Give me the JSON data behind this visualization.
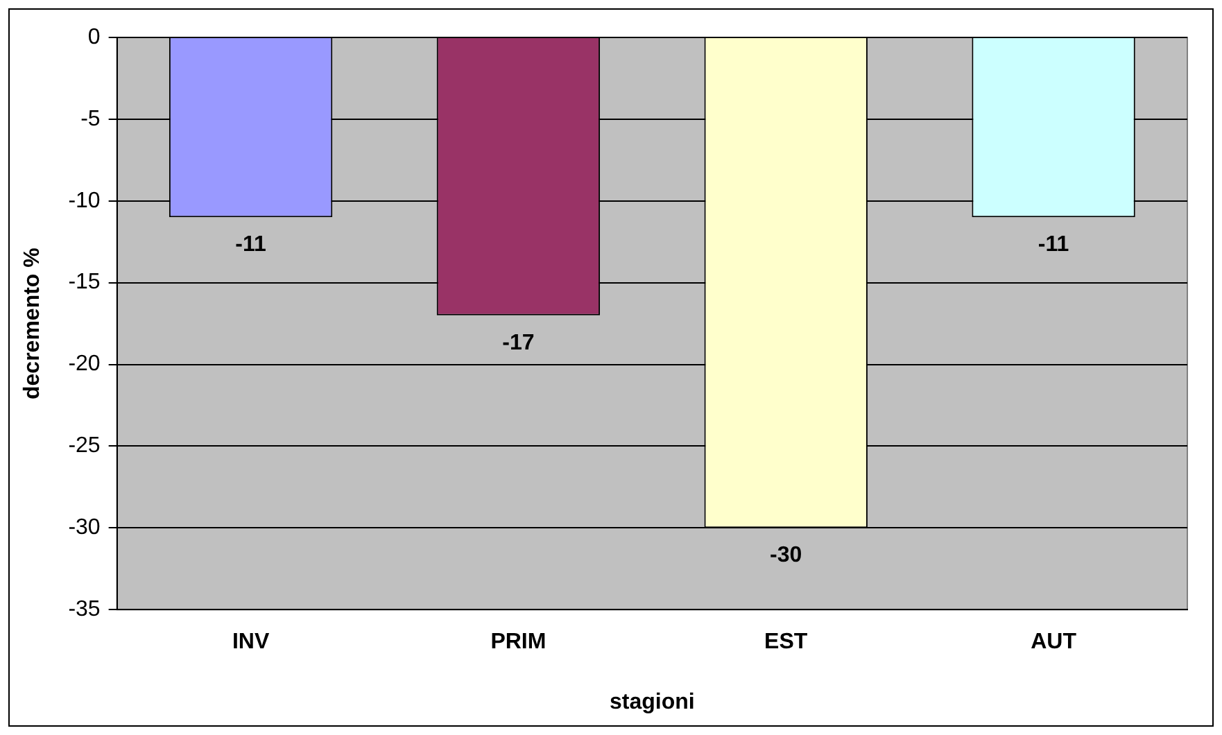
{
  "chart_data": {
    "type": "bar",
    "xlabel": "stagioni",
    "ylabel": "decremento %",
    "categories": [
      "INV",
      "PRIM",
      "EST",
      "AUT"
    ],
    "values": [
      -11,
      -17,
      -30,
      -11
    ],
    "colors": [
      "#9999ff",
      "#993366",
      "#ffffcc",
      "#ccffff"
    ],
    "ylim": [
      -35,
      0
    ],
    "yticks": [
      -35,
      -30,
      -25,
      -20,
      -15,
      -10,
      -5,
      0
    ],
    "grid": "y",
    "legend": false,
    "data_labels": true
  }
}
